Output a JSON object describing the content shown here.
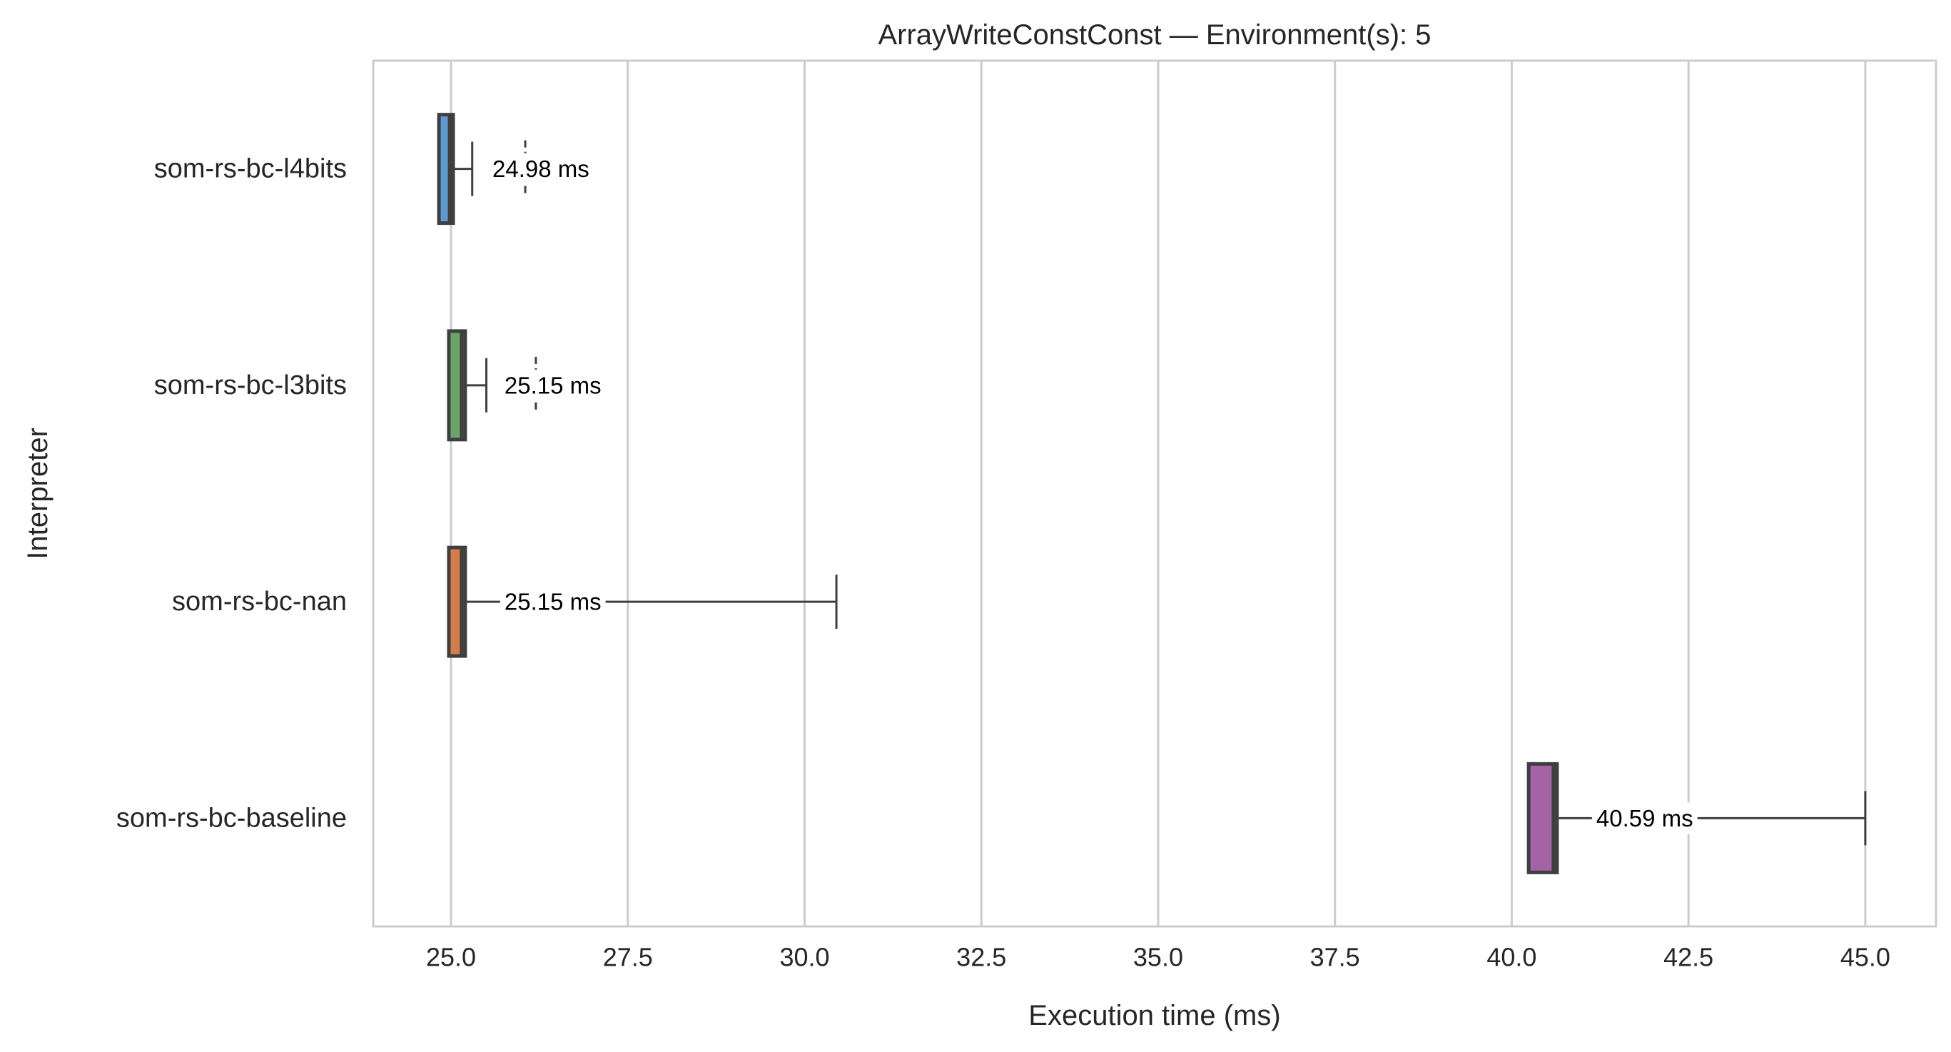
{
  "chart_data": {
    "type": "box",
    "orientation": "horizontal",
    "title": "ArrayWriteConstConst — Environment(s): 5",
    "xlabel": "Execution time (ms)",
    "ylabel": "Interpreter",
    "xlim": [
      23.9,
      46.0
    ],
    "xticks": [
      25.0,
      27.5,
      30.0,
      32.5,
      35.0,
      37.5,
      40.0,
      42.5,
      45.0
    ],
    "xtick_labels": [
      "25.0",
      "27.5",
      "30.0",
      "32.5",
      "35.0",
      "37.5",
      "40.0",
      "42.5",
      "45.0"
    ],
    "grid": "x-major",
    "categories": [
      "som-rs-bc-l4bits",
      "som-rs-bc-l3bits",
      "som-rs-bc-nan",
      "som-rs-bc-baseline"
    ],
    "boxes": [
      {
        "category": "som-rs-bc-l4bits",
        "whisker_low": 24.85,
        "q1": 24.87,
        "median": 24.98,
        "q3": 24.99,
        "whisker_high": 25.3,
        "outliers": [
          26.05
        ],
        "median_label": "24.98 ms",
        "color": "#5a9bd4"
      },
      {
        "category": "som-rs-bc-l3bits",
        "whisker_low": 24.99,
        "q1": 25.01,
        "median": 25.15,
        "q3": 25.16,
        "whisker_high": 25.5,
        "outliers": [
          26.2
        ],
        "median_label": "25.15 ms",
        "color": "#6aa56a"
      },
      {
        "category": "som-rs-bc-nan",
        "whisker_low": 24.99,
        "q1": 25.01,
        "median": 25.15,
        "q3": 25.16,
        "whisker_high": 30.45,
        "outliers": [],
        "median_label": "25.15 ms",
        "color": "#d47d4a"
      },
      {
        "category": "som-rs-bc-baseline",
        "whisker_low": 40.25,
        "q1": 40.28,
        "median": 40.59,
        "q3": 40.6,
        "whisker_high": 45.0,
        "outliers": [],
        "median_label": "40.59 ms",
        "color": "#a463a4"
      }
    ]
  }
}
